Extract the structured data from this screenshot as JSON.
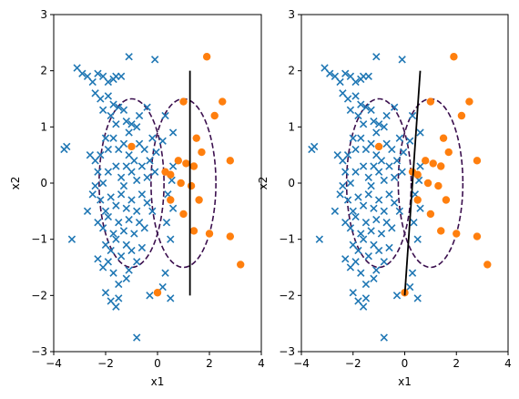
{
  "colors": {
    "cross": "#1f77b4",
    "circle": "#ff7f0e",
    "ellipse": "#3b0f4e",
    "boundary": "#000000"
  },
  "chart_data": [
    {
      "type": "scatter",
      "xlabel": "x1",
      "ylabel": "x2",
      "xlim": [
        -4,
        4
      ],
      "ylim": [
        -3,
        3
      ],
      "xticks": [
        "−4",
        "−2",
        "0",
        "2",
        "4"
      ],
      "yticks": [
        "−3",
        "−2",
        "−1",
        "0",
        "1",
        "2",
        "3"
      ],
      "cross_points": [
        [
          -3.6,
          0.6
        ],
        [
          -3.5,
          0.65
        ],
        [
          -3.1,
          2.05
        ],
        [
          -2.9,
          1.95
        ],
        [
          -2.7,
          1.9
        ],
        [
          -2.5,
          1.8
        ],
        [
          -2.3,
          1.95
        ],
        [
          -2.1,
          1.9
        ],
        [
          -1.9,
          1.8
        ],
        [
          -1.7,
          1.85
        ],
        [
          -1.4,
          1.9
        ],
        [
          -1.1,
          2.25
        ],
        [
          -0.1,
          2.2
        ],
        [
          -2.4,
          1.6
        ],
        [
          -2.2,
          1.5
        ],
        [
          -1.9,
          1.55
        ],
        [
          -1.7,
          1.4
        ],
        [
          -1.5,
          1.35
        ],
        [
          -1.3,
          1.3
        ],
        [
          -2.1,
          1.3
        ],
        [
          -1.8,
          1.2
        ],
        [
          -1.6,
          1.05
        ],
        [
          -1.2,
          1.1
        ],
        [
          -1.0,
          1.05
        ],
        [
          -0.8,
          1.0
        ],
        [
          -0.4,
          1.35
        ],
        [
          -0.7,
          1.2
        ],
        [
          -2.6,
          0.5
        ],
        [
          -2.4,
          0.4
        ],
        [
          -2.2,
          0.5
        ],
        [
          -2.0,
          0.8
        ],
        [
          -1.9,
          0.6
        ],
        [
          -1.7,
          0.8
        ],
        [
          -1.5,
          0.6
        ],
        [
          -1.3,
          0.7
        ],
        [
          -1.1,
          0.5
        ],
        [
          -0.9,
          0.4
        ],
        [
          -0.7,
          0.7
        ],
        [
          -0.5,
          0.6
        ],
        [
          -0.3,
          0.4
        ],
        [
          -0.2,
          0.8
        ],
        [
          -2.3,
          0.2
        ],
        [
          -2.1,
          0.0
        ],
        [
          -1.9,
          0.2
        ],
        [
          -1.6,
          0.3
        ],
        [
          -1.4,
          0.1
        ],
        [
          -1.2,
          0.3
        ],
        [
          -1.0,
          0.2
        ],
        [
          -0.8,
          0.05
        ],
        [
          -0.6,
          0.3
        ],
        [
          -0.4,
          0.1
        ],
        [
          -0.1,
          0.2
        ],
        [
          -2.5,
          -0.2
        ],
        [
          -2.2,
          -0.3
        ],
        [
          -2.0,
          -0.5
        ],
        [
          -1.8,
          -0.25
        ],
        [
          -1.6,
          -0.4
        ],
        [
          -1.4,
          -0.2
        ],
        [
          -1.2,
          -0.45
        ],
        [
          -1.0,
          -0.3
        ],
        [
          -0.8,
          -0.5
        ],
        [
          -0.6,
          -0.2
        ],
        [
          -0.4,
          -0.35
        ],
        [
          -0.2,
          -0.5
        ],
        [
          -2.3,
          -0.7
        ],
        [
          -2.1,
          -0.8
        ],
        [
          -1.9,
          -0.6
        ],
        [
          -1.7,
          -0.9
        ],
        [
          -1.5,
          -0.7
        ],
        [
          -1.3,
          -0.85
        ],
        [
          -1.1,
          -0.65
        ],
        [
          -0.9,
          -0.9
        ],
        [
          -0.7,
          -0.7
        ],
        [
          -2.0,
          -1.1
        ],
        [
          -1.8,
          -1.2
        ],
        [
          -1.6,
          -1.0
        ],
        [
          -1.4,
          -1.3
        ],
        [
          -1.2,
          -1.1
        ],
        [
          -1.0,
          -1.2
        ],
        [
          -0.8,
          -1.4
        ],
        [
          -0.6,
          -1.15
        ],
        [
          -3.3,
          -1.0
        ],
        [
          -2.3,
          -1.35
        ],
        [
          -2.1,
          -1.5
        ],
        [
          -1.9,
          -1.4
        ],
        [
          -1.7,
          -1.6
        ],
        [
          -2.0,
          -1.95
        ],
        [
          -1.8,
          -2.1
        ],
        [
          -1.6,
          -2.2
        ],
        [
          -1.5,
          -1.8
        ],
        [
          -1.2,
          -1.7
        ],
        [
          0.2,
          -1.85
        ],
        [
          -0.3,
          -2.0
        ],
        [
          0.5,
          -2.05
        ],
        [
          -0.8,
          -2.75
        ],
        [
          -1.5,
          -2.05
        ],
        [
          -1.1,
          -1.55
        ],
        [
          0.3,
          -1.6
        ],
        [
          0.5,
          -1.0
        ],
        [
          0.35,
          -0.7
        ],
        [
          0.6,
          -0.45
        ],
        [
          0.4,
          -0.2
        ],
        [
          0.55,
          0.05
        ],
        [
          0.6,
          0.3
        ],
        [
          -0.05,
          0.55
        ],
        [
          0.2,
          0.75
        ],
        [
          0.6,
          0.9
        ],
        [
          0.3,
          1.2
        ],
        [
          -2.4,
          -0.05
        ],
        [
          -1.3,
          -0.05
        ],
        [
          -0.5,
          -0.8
        ],
        [
          -2.7,
          -0.5
        ],
        [
          -1.1,
          0.9
        ],
        [
          -1.6,
          1.9
        ]
      ],
      "circle_points": [
        [
          1.9,
          2.25
        ],
        [
          2.5,
          1.45
        ],
        [
          1.0,
          1.45
        ],
        [
          2.2,
          1.2
        ],
        [
          1.5,
          0.8
        ],
        [
          1.7,
          0.55
        ],
        [
          0.8,
          0.4
        ],
        [
          1.1,
          0.35
        ],
        [
          1.4,
          0.3
        ],
        [
          0.3,
          0.2
        ],
        [
          0.5,
          0.15
        ],
        [
          0.9,
          0.0
        ],
        [
          1.3,
          -0.05
        ],
        [
          0.5,
          -0.3
        ],
        [
          1.6,
          -0.3
        ],
        [
          1.0,
          -0.55
        ],
        [
          2.0,
          -0.9
        ],
        [
          1.4,
          -0.85
        ],
        [
          2.8,
          -0.95
        ],
        [
          3.2,
          -1.45
        ],
        [
          0.0,
          -1.95
        ],
        [
          -1.0,
          0.65
        ],
        [
          2.8,
          0.4
        ]
      ],
      "ellipses": [
        {
          "cx": -1.0,
          "cy": 0.0,
          "rx": 1.25,
          "ry": 1.5
        },
        {
          "cx": 1.0,
          "cy": 0.0,
          "rx": 1.25,
          "ry": 1.5
        }
      ],
      "boundary": [
        [
          1.25,
          2.0
        ],
        [
          1.25,
          -2.0
        ]
      ]
    },
    {
      "type": "scatter",
      "xlabel": "x1",
      "ylabel": "x2",
      "xlim": [
        -4,
        4
      ],
      "ylim": [
        -3,
        3
      ],
      "xticks": [
        "−4",
        "−2",
        "0",
        "2",
        "4"
      ],
      "yticks": [
        "−3",
        "−2",
        "−1",
        "0",
        "1",
        "2",
        "3"
      ],
      "cross_points": [
        [
          -3.6,
          0.6
        ],
        [
          -3.5,
          0.65
        ],
        [
          -3.1,
          2.05
        ],
        [
          -2.9,
          1.95
        ],
        [
          -2.7,
          1.9
        ],
        [
          -2.5,
          1.8
        ],
        [
          -2.3,
          1.95
        ],
        [
          -2.1,
          1.9
        ],
        [
          -1.9,
          1.8
        ],
        [
          -1.7,
          1.85
        ],
        [
          -1.4,
          1.9
        ],
        [
          -1.1,
          2.25
        ],
        [
          -0.1,
          2.2
        ],
        [
          -2.4,
          1.6
        ],
        [
          -2.2,
          1.5
        ],
        [
          -1.9,
          1.55
        ],
        [
          -1.7,
          1.4
        ],
        [
          -1.5,
          1.35
        ],
        [
          -1.3,
          1.3
        ],
        [
          -2.1,
          1.3
        ],
        [
          -1.8,
          1.2
        ],
        [
          -1.6,
          1.05
        ],
        [
          -1.2,
          1.1
        ],
        [
          -1.0,
          1.05
        ],
        [
          -0.8,
          1.0
        ],
        [
          -0.4,
          1.35
        ],
        [
          -0.7,
          1.2
        ],
        [
          -2.6,
          0.5
        ],
        [
          -2.4,
          0.4
        ],
        [
          -2.2,
          0.5
        ],
        [
          -2.0,
          0.8
        ],
        [
          -1.9,
          0.6
        ],
        [
          -1.7,
          0.8
        ],
        [
          -1.5,
          0.6
        ],
        [
          -1.3,
          0.7
        ],
        [
          -1.1,
          0.5
        ],
        [
          -0.9,
          0.4
        ],
        [
          -0.7,
          0.7
        ],
        [
          -0.5,
          0.6
        ],
        [
          -0.3,
          0.4
        ],
        [
          -0.2,
          0.8
        ],
        [
          -2.3,
          0.2
        ],
        [
          -2.1,
          0.0
        ],
        [
          -1.9,
          0.2
        ],
        [
          -1.6,
          0.3
        ],
        [
          -1.4,
          0.1
        ],
        [
          -1.2,
          0.3
        ],
        [
          -1.0,
          0.2
        ],
        [
          -0.8,
          0.05
        ],
        [
          -0.6,
          0.3
        ],
        [
          -0.4,
          0.1
        ],
        [
          -0.1,
          0.2
        ],
        [
          -2.5,
          -0.2
        ],
        [
          -2.2,
          -0.3
        ],
        [
          -2.0,
          -0.5
        ],
        [
          -1.8,
          -0.25
        ],
        [
          -1.6,
          -0.4
        ],
        [
          -1.4,
          -0.2
        ],
        [
          -1.2,
          -0.45
        ],
        [
          -1.0,
          -0.3
        ],
        [
          -0.8,
          -0.5
        ],
        [
          -0.6,
          -0.2
        ],
        [
          -0.4,
          -0.35
        ],
        [
          -0.2,
          -0.5
        ],
        [
          -2.3,
          -0.7
        ],
        [
          -2.1,
          -0.8
        ],
        [
          -1.9,
          -0.6
        ],
        [
          -1.7,
          -0.9
        ],
        [
          -1.5,
          -0.7
        ],
        [
          -1.3,
          -0.85
        ],
        [
          -1.1,
          -0.65
        ],
        [
          -0.9,
          -0.9
        ],
        [
          -0.7,
          -0.7
        ],
        [
          -2.0,
          -1.1
        ],
        [
          -1.8,
          -1.2
        ],
        [
          -1.6,
          -1.0
        ],
        [
          -1.4,
          -1.3
        ],
        [
          -1.2,
          -1.1
        ],
        [
          -1.0,
          -1.2
        ],
        [
          -0.8,
          -1.4
        ],
        [
          -0.6,
          -1.15
        ],
        [
          -3.3,
          -1.0
        ],
        [
          -2.3,
          -1.35
        ],
        [
          -2.1,
          -1.5
        ],
        [
          -1.9,
          -1.4
        ],
        [
          -1.7,
          -1.6
        ],
        [
          -2.0,
          -1.95
        ],
        [
          -1.8,
          -2.1
        ],
        [
          -1.6,
          -2.2
        ],
        [
          -1.5,
          -1.8
        ],
        [
          -1.2,
          -1.7
        ],
        [
          0.2,
          -1.85
        ],
        [
          -0.3,
          -2.0
        ],
        [
          0.5,
          -2.05
        ],
        [
          -0.8,
          -2.75
        ],
        [
          -1.5,
          -2.05
        ],
        [
          -1.1,
          -1.55
        ],
        [
          0.3,
          -1.6
        ],
        [
          0.5,
          -1.0
        ],
        [
          0.35,
          -0.7
        ],
        [
          0.6,
          -0.45
        ],
        [
          0.4,
          -0.2
        ],
        [
          0.55,
          0.05
        ],
        [
          0.6,
          0.3
        ],
        [
          -0.05,
          0.55
        ],
        [
          0.2,
          0.75
        ],
        [
          0.6,
          0.9
        ],
        [
          0.3,
          1.2
        ],
        [
          -2.4,
          -0.05
        ],
        [
          -1.3,
          -0.05
        ],
        [
          -0.5,
          -0.8
        ],
        [
          -2.7,
          -0.5
        ],
        [
          -1.1,
          0.9
        ],
        [
          -1.6,
          1.9
        ]
      ],
      "circle_points": [
        [
          1.9,
          2.25
        ],
        [
          2.5,
          1.45
        ],
        [
          1.0,
          1.45
        ],
        [
          2.2,
          1.2
        ],
        [
          1.5,
          0.8
        ],
        [
          1.7,
          0.55
        ],
        [
          0.8,
          0.4
        ],
        [
          1.1,
          0.35
        ],
        [
          1.4,
          0.3
        ],
        [
          0.3,
          0.2
        ],
        [
          0.5,
          0.15
        ],
        [
          0.9,
          0.0
        ],
        [
          1.3,
          -0.05
        ],
        [
          0.5,
          -0.3
        ],
        [
          1.6,
          -0.3
        ],
        [
          1.0,
          -0.55
        ],
        [
          2.0,
          -0.9
        ],
        [
          1.4,
          -0.85
        ],
        [
          2.8,
          -0.95
        ],
        [
          3.2,
          -1.45
        ],
        [
          0.0,
          -1.95
        ],
        [
          -1.0,
          0.65
        ],
        [
          2.8,
          0.4
        ]
      ],
      "ellipses": [
        {
          "cx": -1.0,
          "cy": 0.0,
          "rx": 1.25,
          "ry": 1.5
        },
        {
          "cx": 1.0,
          "cy": 0.0,
          "rx": 1.25,
          "ry": 1.5
        }
      ],
      "boundary": [
        [
          0.0,
          -2.0
        ],
        [
          0.6,
          2.0
        ]
      ]
    }
  ]
}
